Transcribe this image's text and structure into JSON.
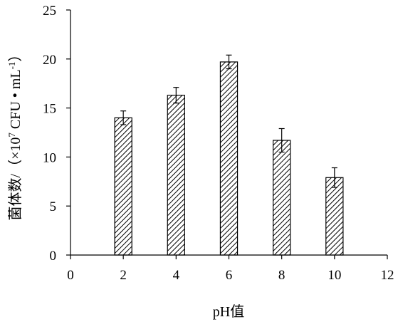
{
  "chart_data": {
    "type": "bar",
    "x": [
      2,
      4,
      6,
      8,
      10
    ],
    "values": [
      14.0,
      16.3,
      19.7,
      11.7,
      7.9
    ],
    "errors": [
      0.7,
      0.8,
      0.7,
      1.2,
      1.0
    ],
    "xlabel": "pH值",
    "ylabel_prefix": "菌体数/（×10",
    "ylabel_exp1": "7",
    "ylabel_mid": " CFU • mL",
    "ylabel_exp2": "-1",
    "ylabel_suffix": "）",
    "xlim": [
      0,
      12
    ],
    "ylim": [
      0,
      25
    ],
    "xticks": [
      0,
      2,
      4,
      6,
      8,
      10,
      12
    ],
    "yticks": [
      0,
      5,
      10,
      15,
      20,
      25
    ],
    "bar_fill": "hatched",
    "bar_color": "#000000",
    "grid": false,
    "legend": false
  }
}
